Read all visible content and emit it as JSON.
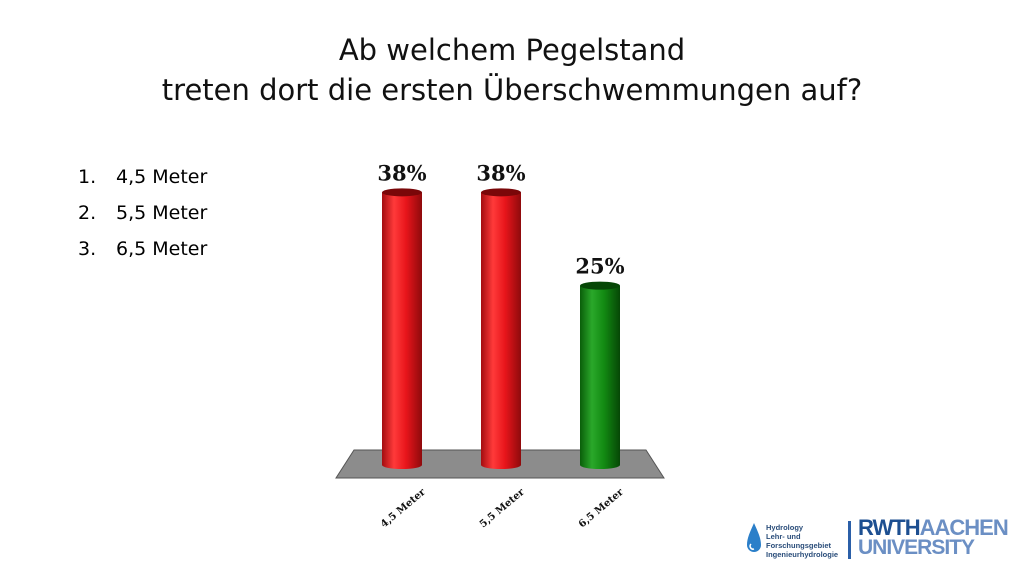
{
  "title": {
    "line1": "Ab welchem Pegelstand",
    "line2": "treten dort die ersten Überschwemmungen auf?"
  },
  "options": [
    {
      "num": "1.",
      "label": "4,5 Meter"
    },
    {
      "num": "2.",
      "label": "5,5 Meter"
    },
    {
      "num": "3.",
      "label": "6,5 Meter"
    }
  ],
  "chart_data": {
    "type": "bar",
    "categories": [
      "4,5 Meter",
      "5,5 Meter",
      "6,5 Meter"
    ],
    "values": [
      38,
      38,
      25
    ],
    "data_labels": [
      "38%",
      "38%",
      "25%"
    ],
    "colors": [
      "#e8151b",
      "#e8151b",
      "#128a12"
    ],
    "ylim": [
      0,
      40
    ],
    "grid": false,
    "legend": "none"
  },
  "logos": {
    "hydro_lines": [
      "Hydrology",
      "Lehr- und",
      "Forschungsgebiet",
      "Ingenieurhydrologie"
    ],
    "rwth_part1": "RWTH",
    "rwth_part2": "AACHEN",
    "rwth_line2": "UNIVERSITY"
  }
}
